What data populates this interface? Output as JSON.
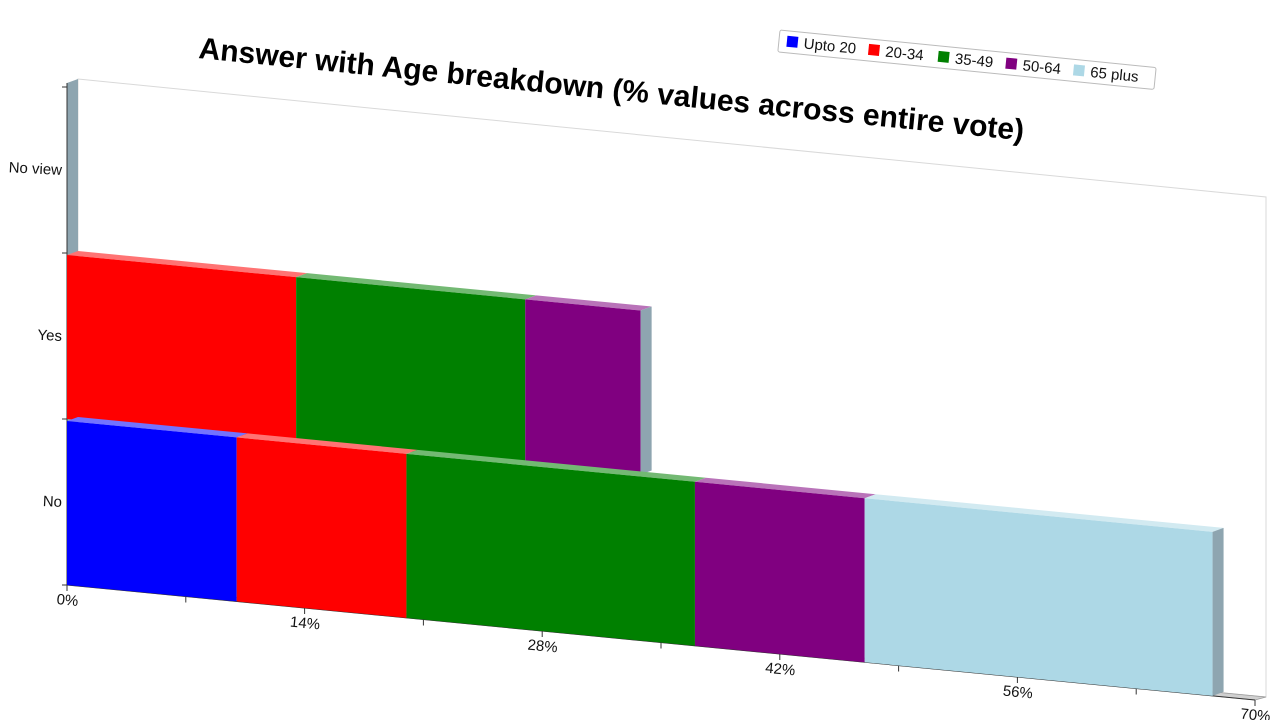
{
  "chart_data": {
    "type": "bar",
    "orientation": "horizontal",
    "stacked": true,
    "title": "Answer with Age breakdown (% values across entire vote)",
    "categories": [
      "No",
      "Yes",
      "No view"
    ],
    "x_ticks": [
      "0%",
      "14%",
      "28%",
      "42%",
      "56%",
      "70%"
    ],
    "xlim": [
      0,
      70
    ],
    "legend_position": "top-right",
    "series": [
      {
        "name": "Upto 20",
        "color": "#0000ff",
        "values": [
          10,
          0,
          0
        ]
      },
      {
        "name": "20-34",
        "color": "#ff0000",
        "values": [
          10,
          13.5,
          0
        ]
      },
      {
        "name": "35-49",
        "color": "#008000",
        "values": [
          17,
          13.5,
          0
        ]
      },
      {
        "name": "50-64",
        "color": "#800080",
        "values": [
          10,
          6.8,
          0
        ]
      },
      {
        "name": "65 plus",
        "color": "#add8e6",
        "values": [
          20.5,
          0,
          0
        ]
      }
    ]
  }
}
